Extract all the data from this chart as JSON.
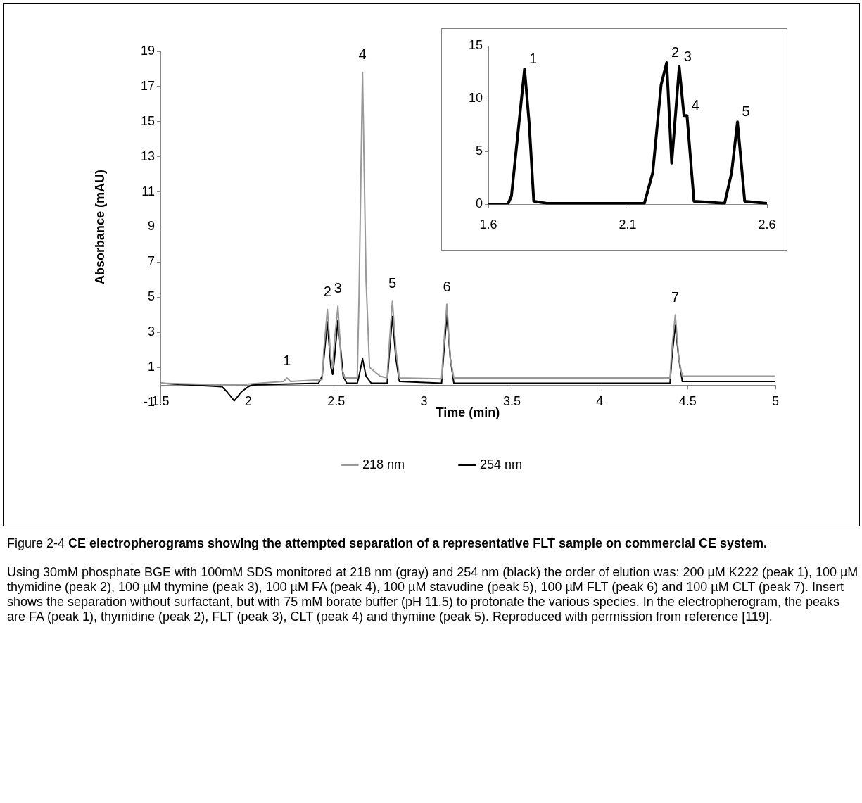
{
  "chart_data": [
    {
      "type": "line",
      "xlabel": "Time (min)",
      "ylabel": "Absorbance (mAU)",
      "xlim": [
        1.5,
        5
      ],
      "ylim": [
        -1,
        19
      ],
      "xticks": [
        1.5,
        2,
        2.5,
        3,
        3.5,
        4,
        4.5,
        5
      ],
      "yticks": [
        -1,
        1,
        3,
        5,
        7,
        9,
        11,
        13,
        15,
        17,
        19
      ],
      "legend": "bottom",
      "marker": "none",
      "series": [
        {
          "name": "218 nm",
          "color": "#999999",
          "x": [
            1.5,
            1.9,
            2.0,
            2.2,
            2.22,
            2.24,
            2.42,
            2.43,
            2.45,
            2.47,
            2.48,
            2.49,
            2.51,
            2.53,
            2.55,
            2.62,
            2.63,
            2.65,
            2.67,
            2.69,
            2.75,
            2.79,
            2.8,
            2.82,
            2.84,
            2.86,
            3.1,
            3.11,
            3.13,
            3.15,
            3.17,
            4.4,
            4.41,
            4.43,
            4.45,
            4.47,
            5
          ],
          "values": [
            0.1,
            0,
            0.05,
            0.2,
            0.4,
            0.2,
            0.3,
            2,
            4.3,
            1.5,
            1,
            2.5,
            4.5,
            1,
            0.4,
            0.4,
            5,
            17.8,
            6,
            1,
            0.5,
            0.4,
            2,
            4.8,
            2,
            0.4,
            0.35,
            2,
            4.6,
            1.5,
            0.4,
            0.4,
            2,
            4,
            1.5,
            0.5,
            0.5
          ]
        },
        {
          "name": "254 nm",
          "color": "#000000",
          "x": [
            1.5,
            1.85,
            1.88,
            1.92,
            1.96,
            2.0,
            2.02,
            2.4,
            2.42,
            2.45,
            2.47,
            2.48,
            2.49,
            2.51,
            2.54,
            2.56,
            2.62,
            2.63,
            2.65,
            2.67,
            2.7,
            2.79,
            2.8,
            2.82,
            2.84,
            2.86,
            3.1,
            3.11,
            3.13,
            3.15,
            3.17,
            4.4,
            4.41,
            4.43,
            4.45,
            4.47,
            5
          ],
          "values": [
            0.1,
            -0.1,
            -0.4,
            -0.9,
            -0.4,
            -0.1,
            0,
            0.1,
            0.5,
            3.6,
            1,
            0.6,
            1.5,
            3.7,
            0.5,
            0.1,
            0.1,
            0.5,
            1.5,
            0.5,
            0.1,
            0.1,
            1.5,
            3.9,
            1.5,
            0.2,
            0.1,
            1.5,
            4,
            1.5,
            0.1,
            0.1,
            1.5,
            3.4,
            1.5,
            0.2,
            0.2
          ]
        }
      ],
      "annotations": [
        {
          "text": "1",
          "x": 2.22,
          "y": 0.4
        },
        {
          "text": "2",
          "x": 2.45,
          "y": 4.3
        },
        {
          "text": "3",
          "x": 2.51,
          "y": 4.5
        },
        {
          "text": "4",
          "x": 2.65,
          "y": 17.8
        },
        {
          "text": "5",
          "x": 2.82,
          "y": 4.8
        },
        {
          "text": "6",
          "x": 3.13,
          "y": 4.6
        },
        {
          "text": "7",
          "x": 4.43,
          "y": 4
        },
        "Figure 2-4",
        "CE electropherograms showing the attempted separation of a representative FLT sample on commercial CE system.",
        "Using 30mM phosphate BGE with 100mM SDS monitored at 218 nm (gray) and 254 nm (black) the order of elution was: 200 µM K222 (peak 1), 100 µM thymidine (peak 2), 100 µM thymine (peak 3), 100 µM FA (peak 4), 100 µM stavudine (peak 5), 100 µM FLT (peak 6) and 100 µM CLT (peak 7). Insert shows the separation without surfactant, but with 75 mM borate buffer (pH 11.5) to protonate the various species. In the electropherogram, the peaks are FA (peak 1), thymidine (peak 2), FLT (peak 3), CLT (peak 4) and thymine (peak 5). Reproduced with permission from reference [119]."
      ]
    },
    {
      "type": "line",
      "xlim": [
        1.6,
        2.6
      ],
      "ylim": [
        0,
        15
      ],
      "xticks": [
        1.6,
        2.1,
        2.6
      ],
      "yticks": [
        0,
        5,
        10,
        15
      ],
      "marker": "none",
      "series": [
        {
          "color": "#000000",
          "x": [
            1.6,
            1.67,
            1.683,
            1.73,
            1.747,
            1.763,
            1.81,
            2.16,
            2.19,
            2.22,
            2.24,
            2.258,
            2.285,
            2.302,
            2.313,
            2.338,
            2.448,
            2.473,
            2.494,
            2.52,
            2.6
          ],
          "values": [
            0,
            0,
            0.8,
            12.8,
            7.5,
            0.3,
            0.1,
            0.1,
            3,
            11.3,
            13.4,
            3.9,
            13,
            8.4,
            8.4,
            0.3,
            0.1,
            3,
            7.8,
            0.3,
            0.1
          ]
        }
      ],
      "annotations": [
        {
          "text": "1",
          "x": 1.73,
          "y": 12.8
        },
        {
          "text": "2",
          "x": 2.24,
          "y": 13.4
        },
        {
          "text": "3",
          "x": 2.285,
          "y": 13
        },
        {
          "text": "4",
          "x": 2.313,
          "y": 8.4
        },
        {
          "text": "5",
          "x": 2.494,
          "y": 7.8
        }
      ]
    }
  ]
}
